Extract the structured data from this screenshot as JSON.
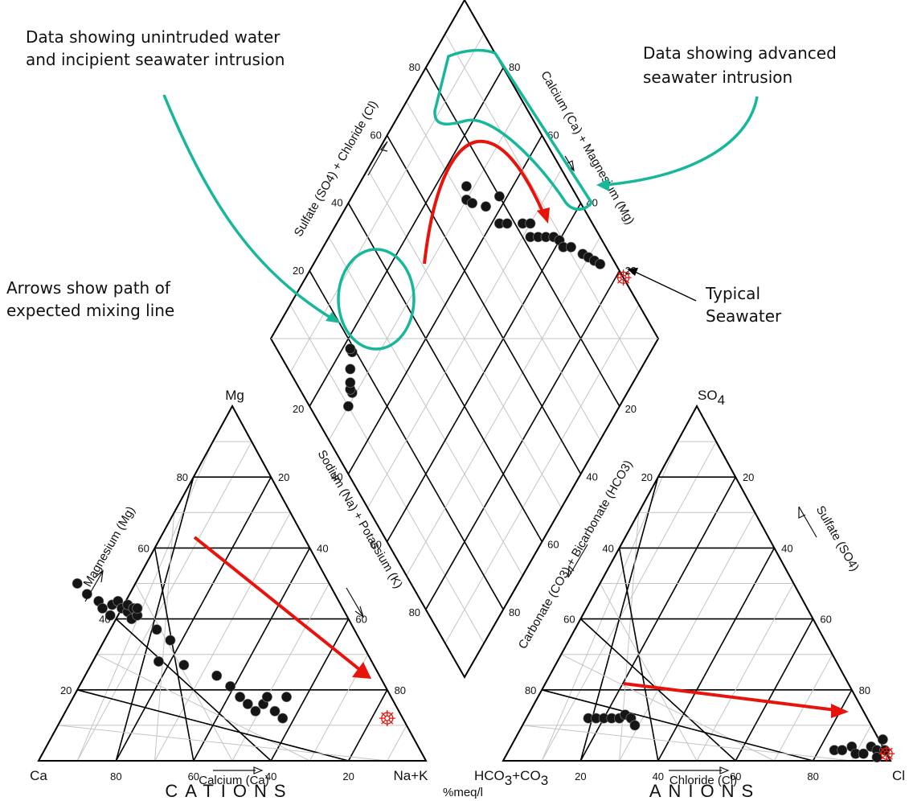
{
  "annotations": {
    "unintruded_line1": "Data showing unintruded water",
    "unintruded_line2": "and incipient seawater intrusion",
    "advanced_line1": "Data showing advanced",
    "advanced_line2": "seawater intrusion",
    "arrows_line1": "Arrows show path of",
    "arrows_line2": "expected mixing line",
    "seawater_line1": "Typical",
    "seawater_line2": "Seawater"
  },
  "cation_triangle": {
    "corner_top": "Mg",
    "corner_left": "Ca",
    "corner_right": "Na+K",
    "axis_bottom": "Calcium (Ca)",
    "axis_left": "Magnesium (Mg)",
    "axis_right": "Sodium (Na) + Potassium (K)",
    "footer": "CATIONS",
    "ticks_bottom": [
      "80",
      "60",
      "40",
      "20"
    ],
    "ticks_left": [
      "20",
      "40",
      "60",
      "80"
    ],
    "ticks_right": [
      "20",
      "40",
      "60",
      "80"
    ]
  },
  "anion_triangle": {
    "corner_top": "SO",
    "corner_top_sub": "4",
    "corner_left": "HCO",
    "corner_left_sub1": "3",
    "corner_left_mid": "+CO",
    "corner_left_sub2": "3",
    "corner_right": "Cl",
    "axis_bottom": "Chloride (Cl)",
    "axis_left": "Carbonate (CO3) + Bicarbonate (HCO3)",
    "axis_right": "Sulfate (SO4)",
    "footer": "ANIONS",
    "ticks_bottom": [
      "20",
      "40",
      "60",
      "80"
    ],
    "ticks_left": [
      "80",
      "60",
      "40",
      "20"
    ],
    "ticks_right": [
      "20",
      "40",
      "60",
      "80"
    ]
  },
  "diamond": {
    "axis_upper_left": "Sulfate (SO4) + Chloride (Cl)",
    "axis_upper_right": "Calcium (Ca) + Magnesium (Mg)",
    "ticks_upper_left": [
      "20",
      "40",
      "60",
      "80"
    ],
    "ticks_upper_right": [
      "80",
      "60",
      "40",
      "20"
    ],
    "ticks_lower_left": [
      "20",
      "40",
      "60",
      "80"
    ],
    "ticks_lower_right": [
      "20",
      "40",
      "60",
      "80"
    ]
  },
  "units": "%meq/l",
  "colors": {
    "annotation": "#17b79a",
    "mixing_arrow": "#e8140c",
    "seawater": "#e8140c",
    "samples": "#151515"
  },
  "samples": {
    "cations": [
      {
        "ca": 65,
        "mg": 50
      },
      {
        "ca": 64,
        "mg": 47
      },
      {
        "ca": 62,
        "mg": 45
      },
      {
        "ca": 62,
        "mg": 43
      },
      {
        "ca": 61,
        "mg": 41
      },
      {
        "ca": 59,
        "mg": 44
      },
      {
        "ca": 57,
        "mg": 45
      },
      {
        "ca": 57,
        "mg": 43
      },
      {
        "ca": 56,
        "mg": 42
      },
      {
        "ca": 56,
        "mg": 40
      },
      {
        "ca": 55,
        "mg": 44
      },
      {
        "ca": 54,
        "mg": 43
      },
      {
        "ca": 54,
        "mg": 41
      },
      {
        "ca": 53,
        "mg": 43
      },
      {
        "ca": 51,
        "mg": 37
      },
      {
        "ca": 49,
        "mg": 34
      },
      {
        "ca": 55,
        "mg": 28
      },
      {
        "ca": 49,
        "mg": 27
      },
      {
        "ca": 42,
        "mg": 24
      },
      {
        "ca": 40,
        "mg": 21
      },
      {
        "ca": 39,
        "mg": 18
      },
      {
        "ca": 38,
        "mg": 16
      },
      {
        "ca": 37,
        "mg": 14
      },
      {
        "ca": 34,
        "mg": 16
      },
      {
        "ca": 32,
        "mg": 18
      },
      {
        "ca": 32,
        "mg": 14
      },
      {
        "ca": 31,
        "mg": 12
      },
      {
        "ca": 27,
        "mg": 18
      }
    ],
    "anions": [
      {
        "cl": 16,
        "so4": 12
      },
      {
        "cl": 18,
        "so4": 12
      },
      {
        "cl": 20,
        "so4": 12
      },
      {
        "cl": 22,
        "so4": 12
      },
      {
        "cl": 24,
        "so4": 12
      },
      {
        "cl": 25,
        "so4": 13
      },
      {
        "cl": 27,
        "so4": 12
      },
      {
        "cl": 29,
        "so4": 10
      },
      {
        "cl": 84,
        "so4": 3
      },
      {
        "cl": 86,
        "so4": 3
      },
      {
        "cl": 88,
        "so4": 4
      },
      {
        "cl": 90,
        "so4": 2
      },
      {
        "cl": 92,
        "so4": 2
      },
      {
        "cl": 93,
        "so4": 4
      },
      {
        "cl": 95,
        "so4": 6
      },
      {
        "cl": 95,
        "so4": 3
      },
      {
        "cl": 97,
        "so4": 3
      },
      {
        "cl": 96,
        "so4": 1
      }
    ],
    "diamond": [
      {
        "cat": 70,
        "an": 10
      },
      {
        "cat": 71,
        "an": 13
      },
      {
        "cat": 72,
        "an": 13
      },
      {
        "cat": 73,
        "an": 14
      },
      {
        "cat": 75,
        "an": 16
      },
      {
        "cat": 77,
        "an": 19
      },
      {
        "cat": 78,
        "an": 19
      },
      {
        "cat": 70,
        "an": 71
      },
      {
        "cat": 72,
        "an": 73
      },
      {
        "cat": 68,
        "an": 72
      },
      {
        "cat": 64,
        "an": 75
      },
      {
        "cat": 62,
        "an": 80
      },
      {
        "cat": 58,
        "an": 76
      },
      {
        "cat": 56,
        "an": 78
      },
      {
        "cat": 52,
        "an": 82
      },
      {
        "cat": 50,
        "an": 84
      },
      {
        "cat": 48,
        "an": 82
      },
      {
        "cat": 46,
        "an": 84
      },
      {
        "cat": 44,
        "an": 86
      },
      {
        "cat": 42,
        "an": 88
      },
      {
        "cat": 40,
        "an": 89
      },
      {
        "cat": 38,
        "an": 89
      },
      {
        "cat": 36,
        "an": 91
      },
      {
        "cat": 32,
        "an": 93
      },
      {
        "cat": 30,
        "an": 94
      },
      {
        "cat": 28,
        "an": 95
      },
      {
        "cat": 26,
        "an": 96
      }
    ]
  },
  "seawater_points": {
    "cation": {
      "ca": 4,
      "mg": 12
    },
    "anion": {
      "cl": 98,
      "so4": 2
    },
    "diamond": {
      "cat": 18,
      "an": 100
    }
  }
}
